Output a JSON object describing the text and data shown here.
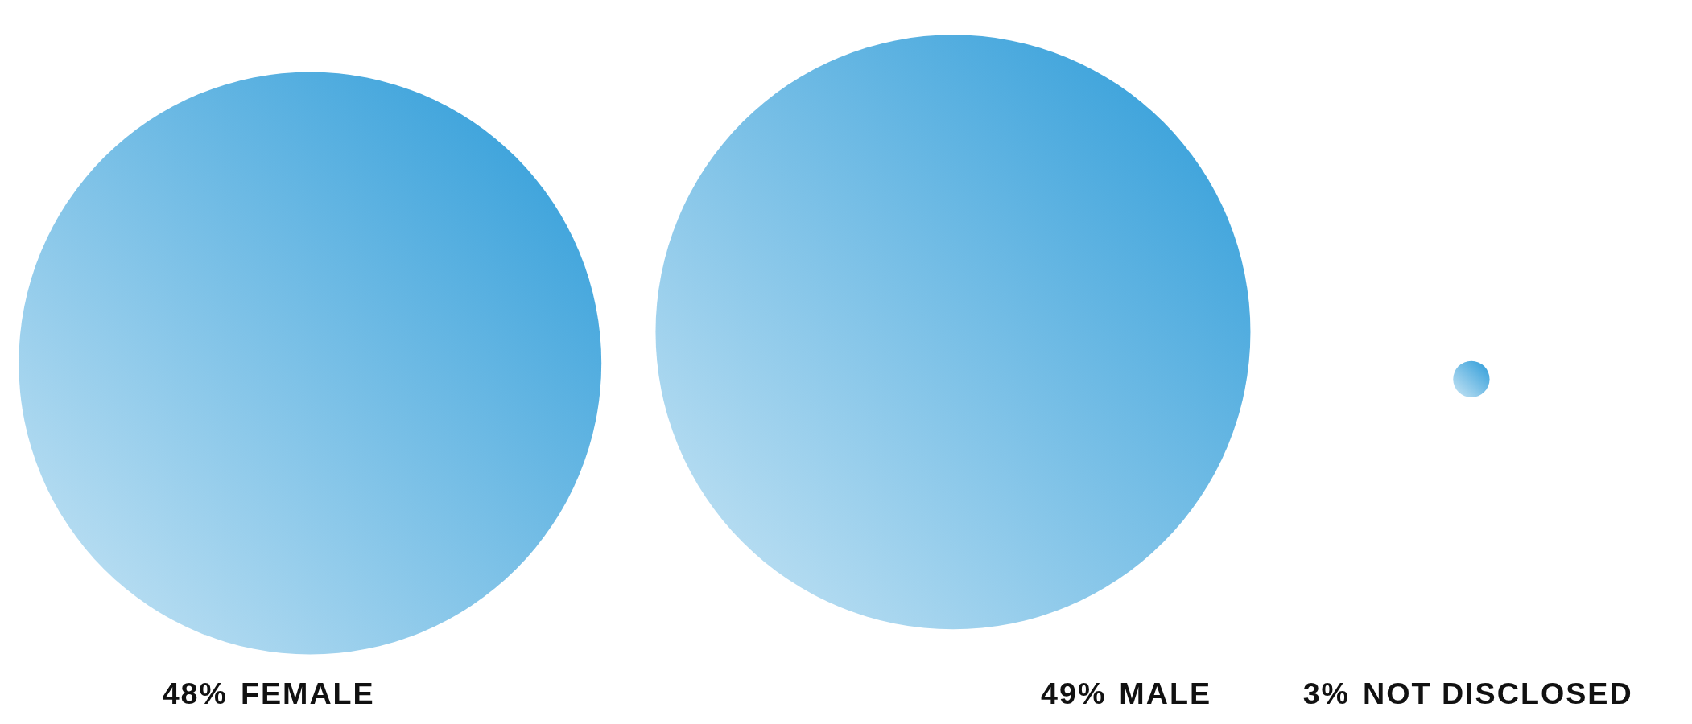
{
  "chart_data": {
    "type": "other",
    "categories": [
      "FEMALE",
      "MALE",
      "NOT DISCLOSED"
    ],
    "values": [
      48,
      49,
      3
    ],
    "value_labels": [
      "48%",
      "49%",
      "3%"
    ],
    "color": "#2a9ad8"
  }
}
